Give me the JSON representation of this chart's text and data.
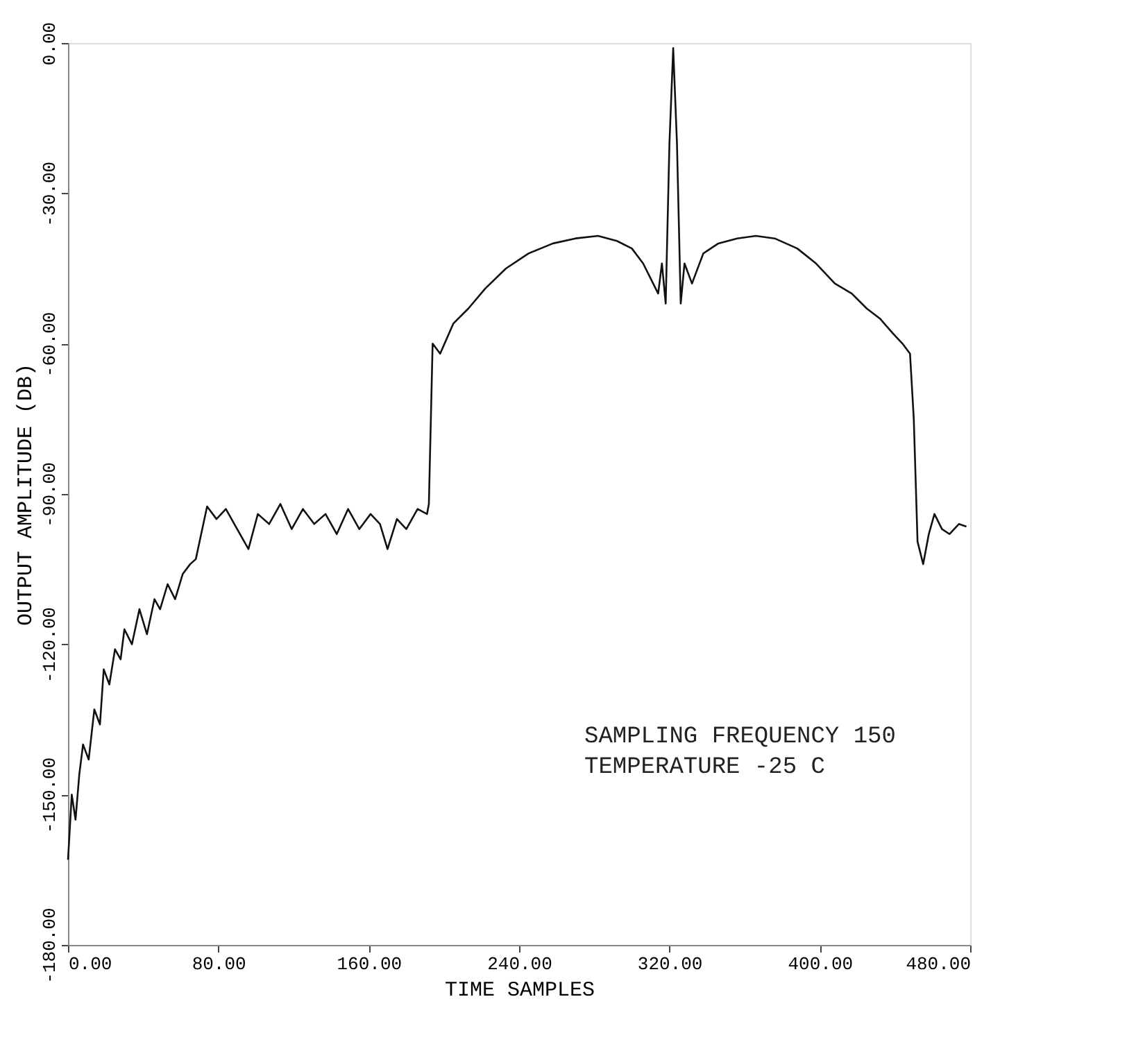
{
  "chart_data": {
    "type": "line",
    "xlabel": "TIME SAMPLES",
    "ylabel": "OUTPUT AMPLITUDE (DB)",
    "x": [
      0,
      2,
      4,
      6,
      8,
      11,
      14,
      17,
      19,
      22,
      25,
      28,
      30,
      34,
      38,
      42,
      46,
      49,
      53,
      57,
      61,
      65,
      68,
      74,
      79,
      84,
      90,
      96,
      101,
      107,
      113,
      119,
      125,
      131,
      137,
      143,
      149,
      155,
      161,
      166,
      170,
      175,
      180,
      186,
      191,
      192,
      194,
      198,
      205,
      213,
      222,
      233,
      245,
      258,
      270,
      282,
      292,
      300,
      306,
      310,
      314,
      316,
      318,
      320,
      322,
      324,
      326,
      328,
      332,
      338,
      346,
      356,
      366,
      376,
      388,
      398,
      408,
      417,
      425,
      432,
      439,
      444,
      448,
      450,
      452,
      455,
      458,
      461,
      465,
      469,
      474,
      478
    ],
    "series": [
      {
        "color": "#111111",
        "values": [
          -163,
          -150,
          -155,
          -146,
          -140,
          -143,
          -133,
          -136,
          -125,
          -128,
          -121,
          -123,
          -117,
          -120,
          -113,
          -118,
          -111,
          -113,
          -108,
          -111,
          -106,
          -104,
          -103,
          -92.5,
          -95,
          -93,
          -97,
          -101,
          -94,
          -96,
          -92,
          -97,
          -93,
          -96,
          -94,
          -98,
          -93,
          -97,
          -94,
          -96,
          -101,
          -95,
          -97,
          -93,
          -94,
          -92,
          -60,
          -62,
          -56,
          -53,
          -49,
          -45,
          -42,
          -40,
          -39,
          -38.5,
          -39.5,
          -41,
          -44,
          -47,
          -50,
          -44,
          -52,
          -20,
          -1,
          -20,
          -52,
          -44,
          -48,
          -42,
          -40,
          -39,
          -38.5,
          -39,
          -41,
          -44,
          -48,
          -50,
          -53,
          -55,
          -58,
          -60,
          -62,
          -75,
          -99.5,
          -104,
          -98,
          -94,
          -97,
          -98,
          -96,
          -96.5
        ]
      }
    ],
    "xlim": [
      0,
      480
    ],
    "ylim": [
      -180,
      0
    ],
    "xticks": [
      {
        "value": 0,
        "label": "0.00"
      },
      {
        "value": 80,
        "label": "80.00"
      },
      {
        "value": 160,
        "label": "160.00"
      },
      {
        "value": 240,
        "label": "240.00"
      },
      {
        "value": 320,
        "label": "320.00"
      },
      {
        "value": 400,
        "label": "400.00"
      },
      {
        "value": 480,
        "label": "480.00"
      }
    ],
    "yticks": [
      {
        "value": -180,
        "label": "-180.00"
      },
      {
        "value": -150,
        "label": "-150.00"
      },
      {
        "value": -120,
        "label": "-120.00"
      },
      {
        "value": -90,
        "label": "-90.00"
      },
      {
        "value": -60,
        "label": "-60.00"
      },
      {
        "value": -30,
        "label": "-30.00"
      },
      {
        "value": 0,
        "label": "0.00"
      }
    ],
    "annotations": [
      "SAMPLING FREQUENCY 150",
      "TEMPERATURE -25 C"
    ],
    "grid": false,
    "marker": "none",
    "line_style": "solid"
  }
}
